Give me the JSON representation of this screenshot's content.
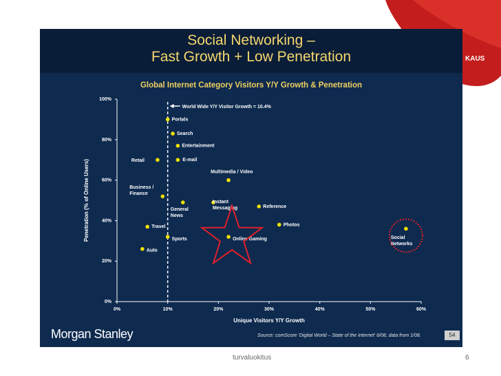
{
  "slide": {
    "title_line1": "Social Networking –",
    "title_line2": "Fast Growth + Low Penetration",
    "logo_text": "Morgan Stanley",
    "source": "Source: comScore 'Digital World – State of the Internet' 6/08, data from 1/08.",
    "slide_number": "54",
    "brand_fragment": "KAUS"
  },
  "footer": {
    "text": "turvaluokitus",
    "page_number": "6"
  },
  "colors": {
    "background": "#0e2a4f",
    "title": "#f5d76e",
    "marker": "#f2e200",
    "highlight": "#e0202a"
  },
  "chart_data": {
    "type": "scatter",
    "title": "Global Internet Category Visitors Y/Y Growth & Penetration",
    "xlabel": "Unique Visitors Y/Y Growth",
    "ylabel": "Penetration (% of Online Users)",
    "xlim": [
      0,
      60
    ],
    "ylim": [
      0,
      100
    ],
    "x_ticks": [
      "0%",
      "10%",
      "20%",
      "30%",
      "40%",
      "50%",
      "60%"
    ],
    "y_ticks": [
      "0%",
      "20%",
      "40%",
      "60%",
      "80%",
      "100%"
    ],
    "grid": false,
    "reference_line": {
      "x": 10,
      "label": "World Wide Y/Y Visitor Growth = 10.4%"
    },
    "points": [
      {
        "name": "Portals",
        "x": 10,
        "y": 90
      },
      {
        "name": "Search",
        "x": 11,
        "y": 83
      },
      {
        "name": "Entertainment",
        "x": 12,
        "y": 77
      },
      {
        "name": "Retail",
        "x": 8,
        "y": 70
      },
      {
        "name": "E-mail",
        "x": 12,
        "y": 70
      },
      {
        "name": "Multimedia / Video",
        "x": 22,
        "y": 60
      },
      {
        "name": "Business / Finance",
        "x": 9,
        "y": 52
      },
      {
        "name": "General News",
        "x": 13,
        "y": 49
      },
      {
        "name": "Instant Messaging",
        "x": 19,
        "y": 49
      },
      {
        "name": "Reference",
        "x": 28,
        "y": 47
      },
      {
        "name": "Travel",
        "x": 6,
        "y": 37
      },
      {
        "name": "Photos",
        "x": 32,
        "y": 38
      },
      {
        "name": "Social Networks",
        "x": 57,
        "y": 36
      },
      {
        "name": "Sports",
        "x": 10,
        "y": 32
      },
      {
        "name": "Online Gaming",
        "x": 22,
        "y": 32
      },
      {
        "name": "Auto",
        "x": 5,
        "y": 26
      }
    ],
    "highlights": {
      "circle_around": "Social Networks",
      "star_around": "Online Gaming"
    }
  }
}
